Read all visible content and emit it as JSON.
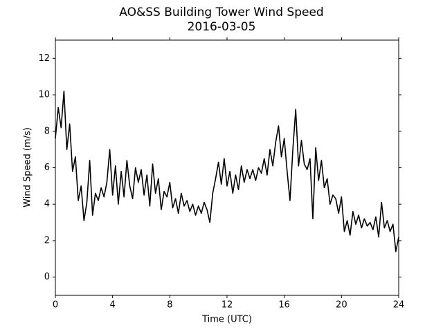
{
  "chart_data": {
    "type": "line",
    "title": "AO&SS Building Tower Wind Speed",
    "subtitle": "2016-03-05",
    "x_label": "Time (UTC)",
    "y_label": "Wind Speed (m/s)",
    "xlim": [
      0,
      24
    ],
    "xticks": [
      0,
      4,
      8,
      12,
      16,
      20,
      24
    ],
    "ylim": [
      -1,
      13
    ],
    "yticks": [
      0,
      2,
      4,
      6,
      8,
      10,
      12
    ],
    "grid": false,
    "x": [
      0,
      0.2,
      0.4,
      0.6,
      0.8,
      1,
      1.2,
      1.4,
      1.6,
      1.8,
      2,
      2.2,
      2.4,
      2.6,
      2.8,
      3,
      3.2,
      3.4,
      3.6,
      3.8,
      4,
      4.2,
      4.4,
      4.6,
      4.8,
      5,
      5.2,
      5.4,
      5.6,
      5.8,
      6,
      6.2,
      6.4,
      6.6,
      6.8,
      7,
      7.2,
      7.4,
      7.6,
      7.8,
      8,
      8.2,
      8.4,
      8.6,
      8.8,
      9,
      9.2,
      9.4,
      9.6,
      9.8,
      10,
      10.2,
      10.4,
      10.6,
      10.8,
      11,
      11.2,
      11.4,
      11.6,
      11.8,
      12,
      12.2,
      12.4,
      12.6,
      12.8,
      13,
      13.2,
      13.4,
      13.6,
      13.8,
      14,
      14.2,
      14.4,
      14.6,
      14.8,
      15,
      15.2,
      15.4,
      15.6,
      15.8,
      16,
      16.2,
      16.4,
      16.6,
      16.8,
      17,
      17.2,
      17.4,
      17.6,
      17.8,
      18,
      18.2,
      18.4,
      18.6,
      18.8,
      19,
      19.2,
      19.4,
      19.6,
      19.8,
      20,
      20.2,
      20.4,
      20.6,
      20.8,
      21,
      21.2,
      21.4,
      21.6,
      21.8,
      22,
      22.2,
      22.4,
      22.6,
      22.8,
      23,
      23.2,
      23.4,
      23.6,
      23.8,
      24
    ],
    "series": [
      {
        "color": "#000000",
        "values": [
          7.6,
          9.3,
          8.2,
          10.2,
          7.0,
          8.4,
          5.8,
          6.6,
          4.2,
          5.0,
          3.1,
          4.1,
          6.4,
          3.4,
          4.6,
          4.2,
          4.9,
          4.4,
          5.2,
          7.0,
          4.5,
          6.1,
          4.0,
          5.8,
          4.4,
          6.4,
          5.0,
          4.3,
          6.0,
          5.2,
          5.9,
          4.5,
          5.6,
          3.9,
          6.2,
          4.6,
          5.4,
          3.7,
          4.7,
          4.4,
          5.2,
          3.8,
          4.3,
          3.5,
          4.6,
          3.9,
          4.2,
          3.6,
          4.0,
          3.4,
          3.9,
          3.5,
          4.1,
          3.7,
          3.0,
          4.6,
          5.4,
          6.3,
          5.1,
          6.5,
          5.0,
          5.8,
          4.6,
          5.6,
          4.8,
          6.1,
          5.2,
          5.9,
          5.4,
          5.9,
          5.3,
          6.0,
          5.7,
          6.5,
          5.6,
          7.0,
          6.1,
          7.4,
          8.3,
          6.6,
          7.6,
          5.8,
          4.2,
          7.0,
          9.2,
          6.1,
          7.5,
          6.2,
          5.9,
          6.5,
          3.2,
          7.1,
          5.3,
          6.4,
          4.9,
          5.4,
          4.0,
          4.5,
          4.3,
          3.5,
          4.4,
          2.5,
          3.1,
          2.3,
          3.6,
          2.9,
          3.4,
          2.7,
          3.2,
          2.8,
          3.0,
          2.6,
          3.3,
          2.2,
          4.1,
          2.7,
          3.1,
          2.5,
          2.9,
          1.4,
          2.2
        ]
      }
    ]
  }
}
